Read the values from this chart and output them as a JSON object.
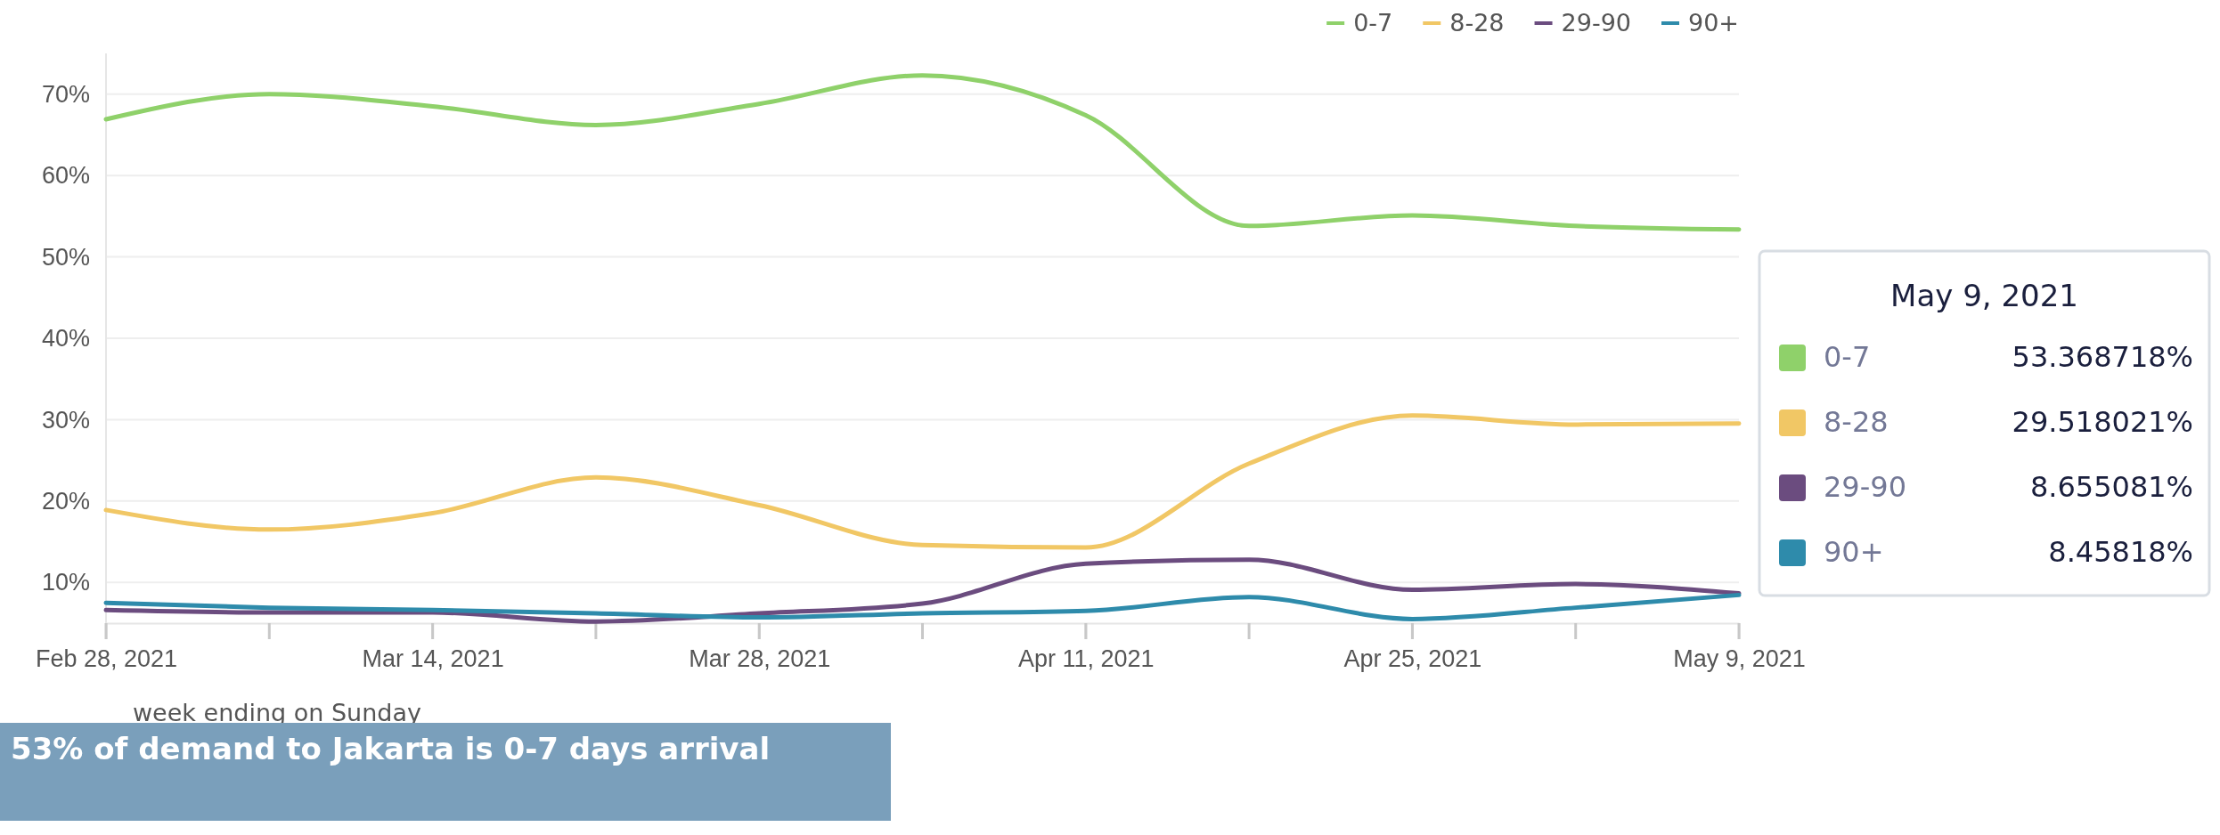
{
  "chart_data": {
    "type": "line",
    "xlabel": "week ending on Sunday",
    "x": [
      "2021-02-28",
      "2021-03-07",
      "2021-03-14",
      "2021-03-21",
      "2021-03-28",
      "2021-04-04",
      "2021-04-11",
      "2021-04-18",
      "2021-04-25",
      "2021-05-02",
      "2021-05-09"
    ],
    "xlim": [
      "2021-02-28",
      "2021-05-09"
    ],
    "xticks": [
      {
        "value": "2021-02-28",
        "label": "Feb 28, 2021"
      },
      {
        "value": "2021-03-14",
        "label": "Mar 14, 2021"
      },
      {
        "value": "2021-03-28",
        "label": "Mar 28, 2021"
      },
      {
        "value": "2021-04-11",
        "label": "Apr 11, 2021"
      },
      {
        "value": "2021-04-25",
        "label": "Apr 25, 2021"
      },
      {
        "value": "2021-05-09",
        "label": "May 9, 2021"
      }
    ],
    "ylim": [
      5,
      75
    ],
    "yticks": [
      {
        "value": 10,
        "label": "10%"
      },
      {
        "value": 20,
        "label": "20%"
      },
      {
        "value": 30,
        "label": "30%"
      },
      {
        "value": 40,
        "label": "40%"
      },
      {
        "value": 50,
        "label": "50%"
      },
      {
        "value": 60,
        "label": "60%"
      },
      {
        "value": 70,
        "label": "70%"
      }
    ],
    "grid": "y",
    "legend": "top right",
    "marker": "none",
    "series": [
      {
        "name": "0-7",
        "color": "#8fd16a",
        "values": [
          66.9,
          70,
          68.5,
          66.2,
          68.8,
          72.3,
          67.4,
          53.8,
          55.1,
          53.8,
          53.368718
        ]
      },
      {
        "name": "8-28",
        "color": "#f1c765",
        "values": [
          18.9,
          16.5,
          18.5,
          22.9,
          19.5,
          14.6,
          14.3,
          24.6,
          30.5,
          29.4,
          29.518021
        ]
      },
      {
        "name": "29-90",
        "color": "#6b4c7f",
        "values": [
          6.6,
          6.3,
          6.3,
          5.2,
          6.2,
          7.4,
          12.3,
          12.8,
          9.1,
          9.8,
          8.655081
        ]
      },
      {
        "name": "90+",
        "color": "#2e8bab",
        "values": [
          7.5,
          6.9,
          6.6,
          6.2,
          5.7,
          6.2,
          6.5,
          8.2,
          5.5,
          6.9,
          8.45818
        ]
      }
    ],
    "annotations": [
      "May 9, 2021",
      "53.368718%",
      "29.518021%",
      "8.655081%",
      "8.45818%",
      "53% of demand to Jakarta is 0-7 days arrival"
    ]
  }
}
